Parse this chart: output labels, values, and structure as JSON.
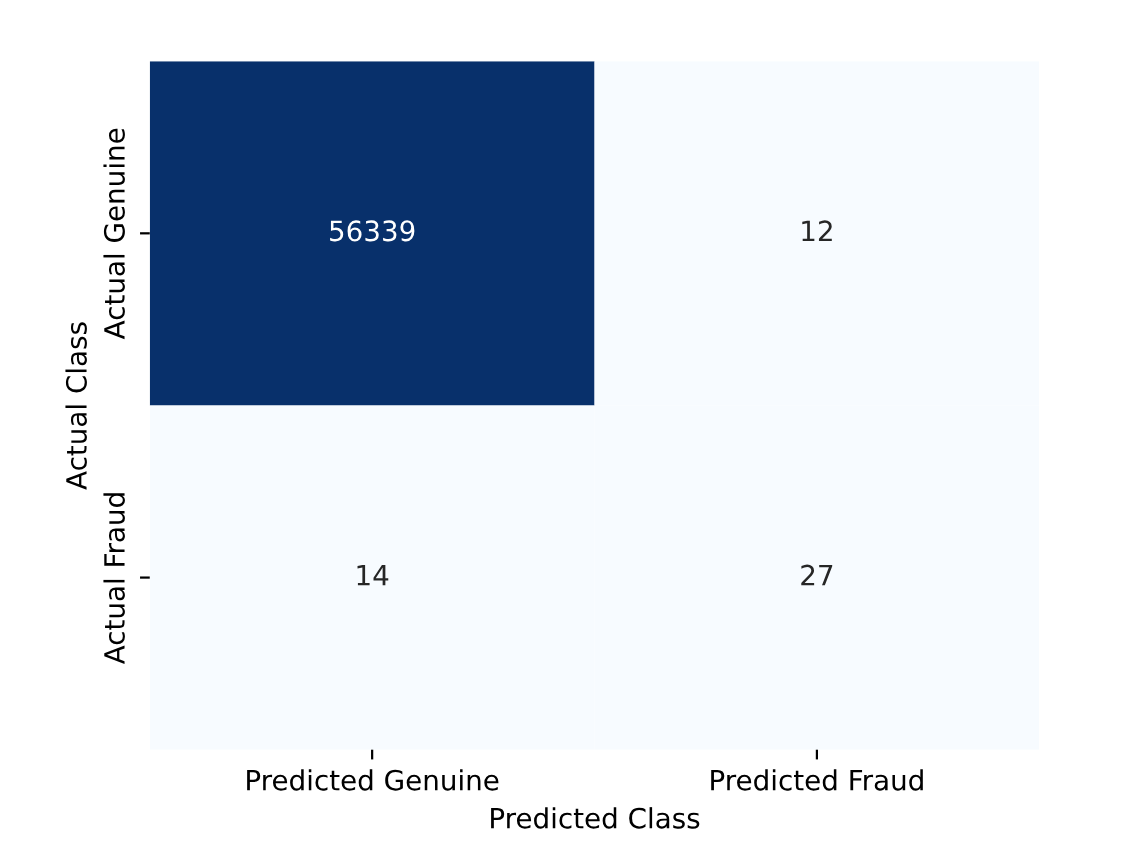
{
  "chart_data": {
    "type": "heatmap",
    "xlabel": "Predicted Class",
    "ylabel": "Actual Class",
    "categories": [
      "Predicted Genuine",
      "Predicted Fraud"
    ],
    "y_categories": [
      "Actual Genuine",
      "Actual Fraud"
    ],
    "cells": [
      [
        56339,
        12
      ],
      [
        14,
        27
      ]
    ],
    "data_labels": true
  }
}
